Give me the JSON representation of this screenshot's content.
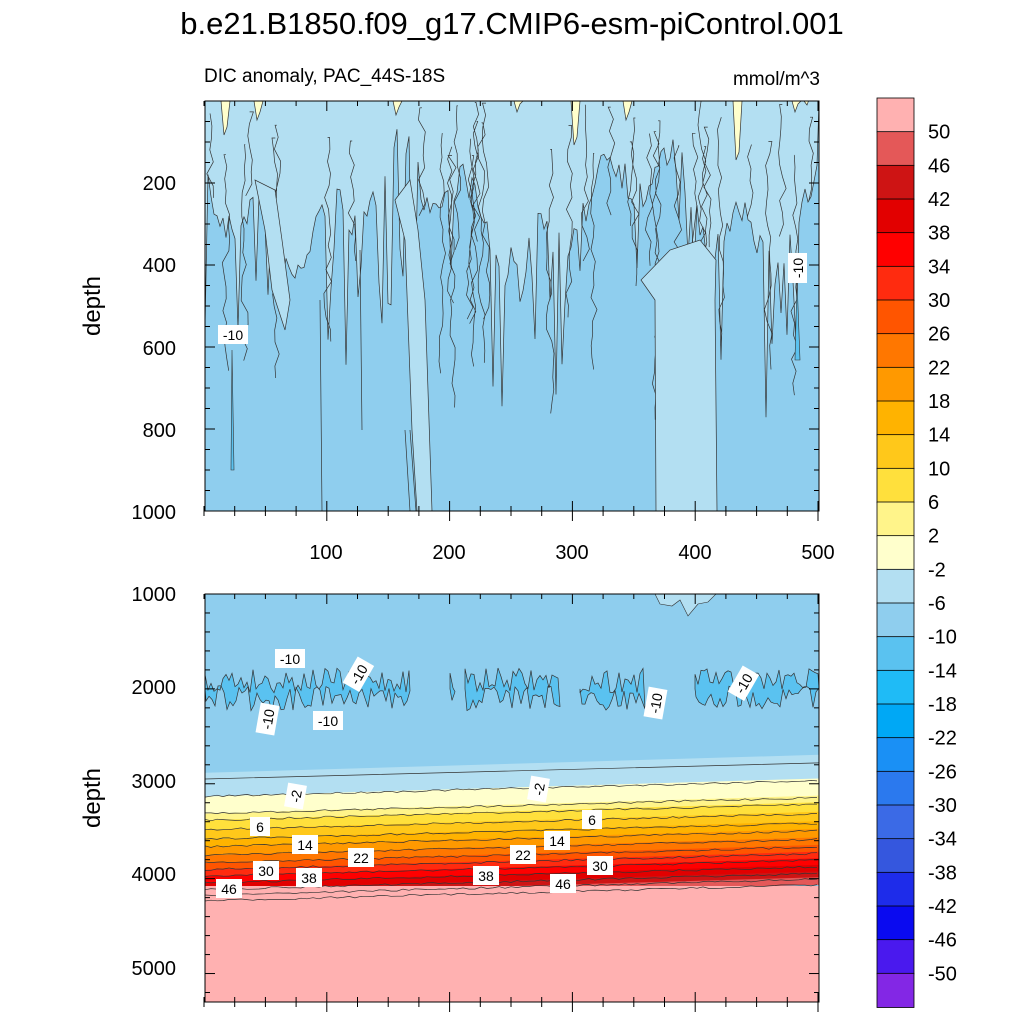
{
  "chart_data": [
    {
      "type": "heatmap",
      "panel": "upper",
      "title": "b.e21.B1850.f09_g17.CMIP6-esm-piControl.001",
      "subtitle_left": "DIC anomaly, PAC_44S-18S",
      "subtitle_right": "mmol/m^3",
      "xlabel": "",
      "ylabel": "depth",
      "xlim": [
        0,
        500
      ],
      "ylim": [
        1000,
        0
      ],
      "xticks": [
        "100",
        "200",
        "300",
        "400",
        "500"
      ],
      "yticks": [
        "200",
        "400",
        "600",
        "800",
        "1000"
      ],
      "contour_labels": [
        "-10",
        "-10"
      ],
      "description_values": {
        "0-150m": -2,
        "150-600m": -6,
        "600-1000m": -8
      }
    },
    {
      "type": "heatmap",
      "panel": "lower",
      "xlabel": "",
      "ylabel": "depth",
      "xlim": [
        0,
        500
      ],
      "ylim": [
        5300,
        1000
      ],
      "yticks": [
        "1000",
        "2000",
        "3000",
        "4000",
        "5000"
      ],
      "contour_labels": [
        "-10",
        "-10",
        "-10",
        "-10",
        "-10",
        "-10",
        "-2",
        "-2",
        "6",
        "6",
        "14",
        "14",
        "22",
        "22",
        "30",
        "30",
        "38",
        "38",
        "46",
        "46"
      ],
      "profile": [
        {
          "depth_top": 1000,
          "depth_bottom": 2800,
          "value": -8
        },
        {
          "depth_top": 1800,
          "depth_bottom": 2200,
          "value": -12
        },
        {
          "depth_top": 2800,
          "depth_bottom": 3100,
          "value": -4
        },
        {
          "depth_top": 3100,
          "depth_bottom": 3300,
          "value": 0
        },
        {
          "depth_top": 3300,
          "depth_bottom": 4100,
          "value": 24
        },
        {
          "depth_top": 4150,
          "depth_bottom": 5300,
          "value": 52
        }
      ]
    }
  ],
  "colorbar": {
    "labels": [
      "50",
      "46",
      "42",
      "38",
      "34",
      "30",
      "26",
      "22",
      "18",
      "14",
      "10",
      "6",
      "2",
      "-2",
      "-6",
      "-10",
      "-14",
      "-18",
      "-22",
      "-26",
      "-30",
      "-34",
      "-38",
      "-42",
      "-46",
      "-50"
    ],
    "colors": [
      "#FFB1B1",
      "#E45858",
      "#CE1414",
      "#E20000",
      "#FF0000",
      "#FF2B0F",
      "#FF5500",
      "#FF7700",
      "#FF9900",
      "#FFB300",
      "#FFC81A",
      "#FFE03C",
      "#FFF48A",
      "#FFFFCC",
      "#B3DFF2",
      "#8FCEEE",
      "#5AC2F0",
      "#1FBBF6",
      "#00A8F5",
      "#1A90F5",
      "#2B79EE",
      "#3B6AE6",
      "#3557DE",
      "#1E2CEA",
      "#0A0AF0",
      "#4A19EE",
      "#8327E5"
    ]
  }
}
